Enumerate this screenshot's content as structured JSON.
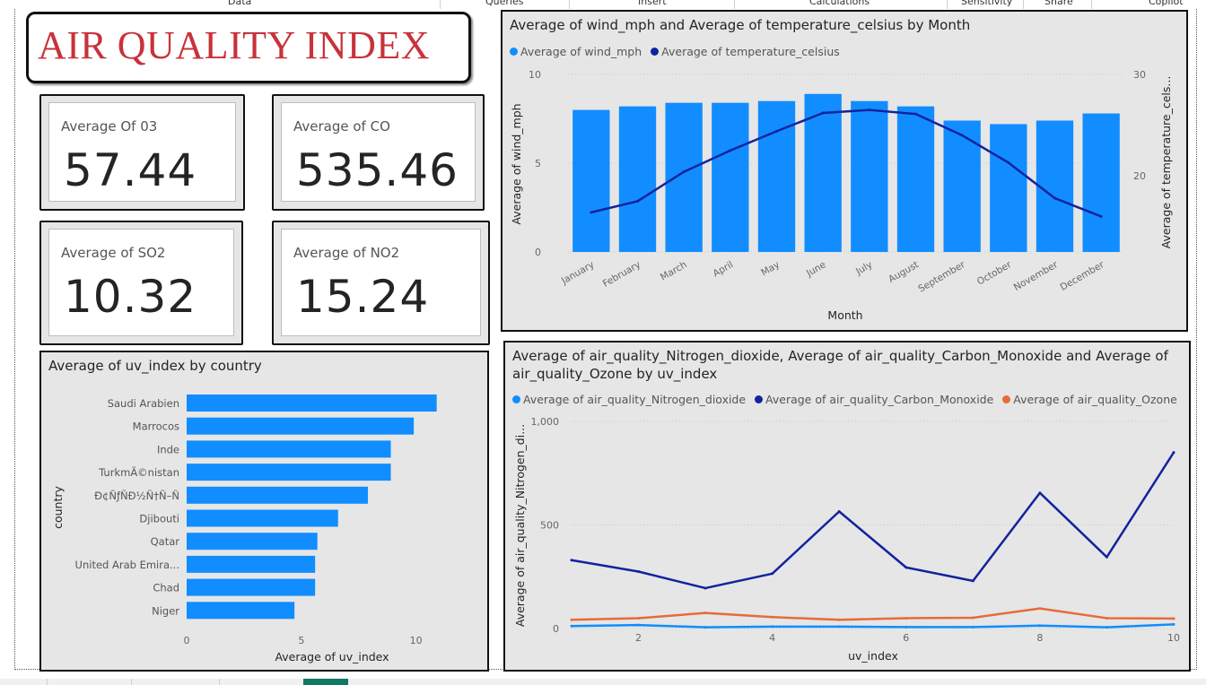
{
  "ribbon": {
    "items": [
      "Data",
      "Queries",
      "Insert",
      "Calculations",
      "Sensitivity",
      "Share",
      "Copilot"
    ]
  },
  "title": "AIR QUALITY INDEX",
  "cards": [
    {
      "label": "Average Of 03",
      "value": "57.44"
    },
    {
      "label": "Average of CO",
      "value": "535.46"
    },
    {
      "label": "Average of SO2",
      "value": "10.32"
    },
    {
      "label": "Average of NO2",
      "value": "15.24"
    }
  ],
  "colors": {
    "light_blue": "#118DFF",
    "dark_blue": "#12239E",
    "orange": "#E66C37",
    "title_red": "#C8323A"
  },
  "chart_data": [
    {
      "type": "bar",
      "title": "Average of wind_mph and Average of temperature_celsius by Month",
      "xlabel": "Month",
      "ylabel": "Average of wind_mph",
      "ylabel2": "Average of temperature_cels...",
      "categories": [
        "January",
        "February",
        "March",
        "April",
        "May",
        "June",
        "July",
        "August",
        "September",
        "October",
        "November",
        "December"
      ],
      "ylim": [
        0,
        10
      ],
      "yticks": [
        "0",
        "5",
        "10"
      ],
      "y2lim": [
        12.5,
        30
      ],
      "y2ticks": [
        "20",
        "30"
      ],
      "series": [
        {
          "name": "Average of wind_mph",
          "type": "bar",
          "axis": "left",
          "color": "#118DFF",
          "values": [
            8.0,
            8.2,
            8.4,
            8.4,
            8.5,
            8.9,
            8.5,
            8.2,
            7.4,
            7.2,
            7.4,
            7.8
          ]
        },
        {
          "name": "Average of temperature_celsius",
          "type": "line",
          "axis": "right",
          "color": "#12239E",
          "values": [
            16.4,
            17.5,
            20.4,
            22.5,
            24.4,
            26.2,
            26.5,
            26.1,
            24.0,
            21.3,
            17.8,
            16.0
          ]
        }
      ],
      "legend": "top-left",
      "grid": true
    },
    {
      "type": "bar",
      "orientation": "horizontal",
      "title": "Average of uv_index by country",
      "xlabel": "Average of uv_index",
      "ylabel": "country",
      "categories": [
        "Saudi Arabien",
        "Marrocos",
        "Inde",
        "TurkmÃ©nistan",
        "Ð¢ÑƒÑÐ½Ñ†Ñ–Ñ",
        "Djibouti",
        "Qatar",
        "United Arab Emira...",
        "Chad",
        "Niger"
      ],
      "values": [
        10.9,
        9.9,
        8.9,
        8.9,
        7.9,
        6.6,
        5.7,
        5.6,
        5.6,
        4.7
      ],
      "xlim": [
        0,
        11.5
      ],
      "xticks": [
        "0",
        "5",
        "10"
      ],
      "color": "#118DFF"
    },
    {
      "type": "line",
      "title": "Average of air_quality_Nitrogen_dioxide, Average of air_quality_Carbon_Monoxide and Average of air_quality_Ozone by uv_index",
      "xlabel": "uv_index",
      "ylabel": "Average of air_quality_Nitrogen_di...",
      "x": [
        1,
        2,
        3,
        4,
        5,
        6,
        7,
        8,
        9,
        10
      ],
      "xlim": [
        1,
        10
      ],
      "xticks": [
        "2",
        "4",
        "6",
        "8",
        "10"
      ],
      "ylim": [
        0,
        1000
      ],
      "yticks": [
        "0",
        "500",
        "1,000"
      ],
      "series": [
        {
          "name": "Average of air_quality_Nitrogen_dioxide",
          "color": "#118DFF",
          "values": [
            12,
            17,
            6,
            9,
            9,
            7,
            7,
            14,
            6,
            20
          ]
        },
        {
          "name": "Average of air_quality_Carbon_Monoxide",
          "color": "#12239E",
          "values": [
            330,
            275,
            195,
            265,
            565,
            295,
            230,
            655,
            345,
            850
          ]
        },
        {
          "name": "Average of air_quality_Ozone",
          "color": "#E66C37",
          "values": [
            42,
            50,
            75,
            55,
            42,
            50,
            52,
            97,
            50,
            48
          ]
        }
      ],
      "legend": "top-left",
      "grid": true
    }
  ]
}
